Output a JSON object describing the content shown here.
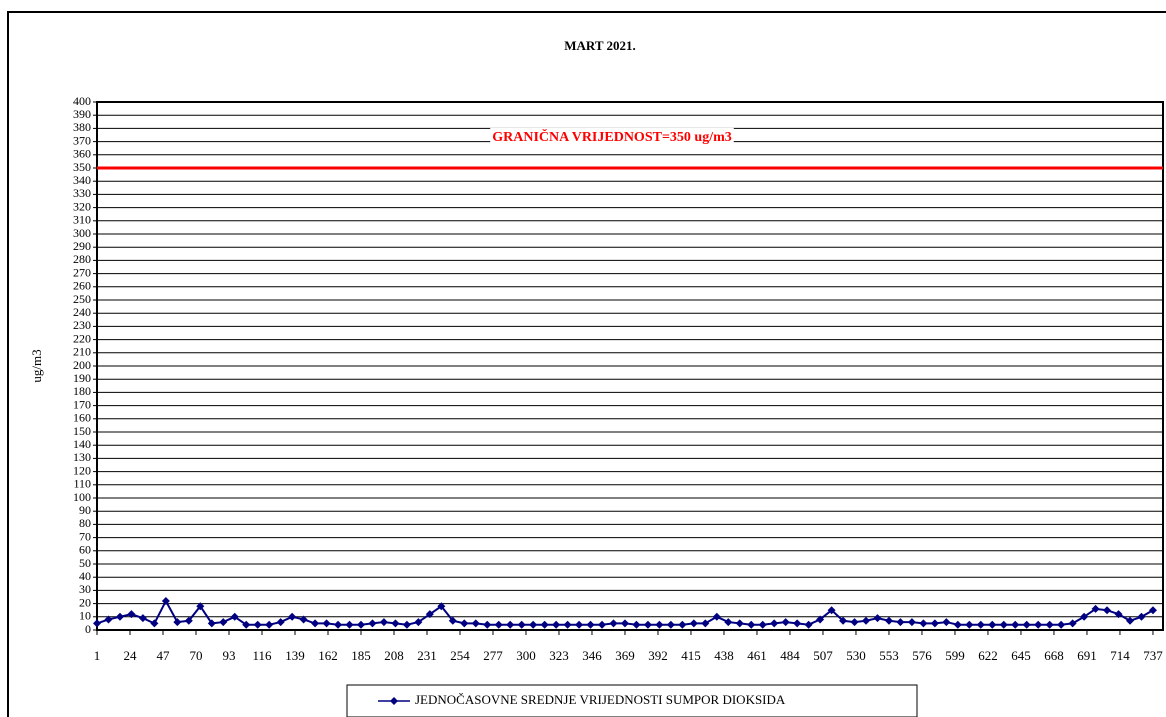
{
  "chart_data": {
    "type": "line",
    "title": "MART 2021.",
    "ylabel": "ug/m3",
    "x": [
      1,
      9,
      17,
      25,
      33,
      41,
      49,
      57,
      65,
      73,
      81,
      89,
      97,
      105,
      113,
      121,
      129,
      137,
      145,
      153,
      161,
      169,
      177,
      185,
      193,
      201,
      209,
      217,
      225,
      233,
      241,
      249,
      257,
      265,
      273,
      281,
      289,
      297,
      305,
      313,
      321,
      329,
      337,
      345,
      353,
      361,
      369,
      377,
      385,
      393,
      401,
      409,
      417,
      425,
      433,
      441,
      449,
      457,
      465,
      473,
      481,
      489,
      497,
      505,
      513,
      521,
      529,
      537,
      545,
      553,
      561,
      569,
      577,
      585,
      593,
      601,
      609,
      617,
      625,
      633,
      641,
      649,
      657,
      665,
      673,
      681,
      689,
      697,
      705,
      713,
      721,
      729,
      737
    ],
    "series": [
      {
        "name": "JEDNOČASOVNE SREDNJE VRIJEDNOSTI SUMPOR DIOKSIDA",
        "color": "#000080",
        "values": [
          5,
          8,
          10,
          12,
          9,
          5,
          22,
          6,
          7,
          18,
          5,
          6,
          10,
          4,
          4,
          4,
          6,
          10,
          8,
          5,
          5,
          4,
          4,
          4,
          5,
          6,
          5,
          4,
          6,
          12,
          18,
          7,
          5,
          5,
          4,
          4,
          4,
          4,
          4,
          4,
          4,
          4,
          4,
          4,
          4,
          5,
          5,
          4,
          4,
          4,
          4,
          4,
          5,
          5,
          10,
          6,
          5,
          4,
          4,
          5,
          6,
          5,
          4,
          8,
          15,
          7,
          6,
          7,
          9,
          7,
          6,
          6,
          5,
          5,
          6,
          4,
          4,
          4,
          4,
          4,
          4,
          4,
          4,
          4,
          4,
          5,
          10,
          16,
          15,
          12,
          7,
          10,
          15
        ]
      }
    ],
    "threshold": {
      "value": 350,
      "label": "GRANIČNA VRIJEDNOST=350 ug/m3",
      "color": "#ff0000"
    },
    "xlim": [
      1,
      744
    ],
    "xticks": [
      1,
      24,
      47,
      70,
      93,
      116,
      139,
      162,
      185,
      208,
      231,
      254,
      277,
      300,
      323,
      346,
      369,
      392,
      415,
      438,
      461,
      484,
      507,
      530,
      553,
      576,
      599,
      622,
      645,
      668,
      691,
      714,
      737
    ],
    "ylim": [
      0,
      400
    ],
    "yticks": [
      0,
      10,
      20,
      30,
      40,
      50,
      60,
      70,
      80,
      90,
      100,
      110,
      120,
      130,
      140,
      150,
      160,
      170,
      180,
      190,
      200,
      210,
      220,
      230,
      240,
      250,
      260,
      270,
      280,
      290,
      300,
      310,
      320,
      330,
      340,
      350,
      360,
      370,
      380,
      390,
      400
    ],
    "grid": true
  }
}
